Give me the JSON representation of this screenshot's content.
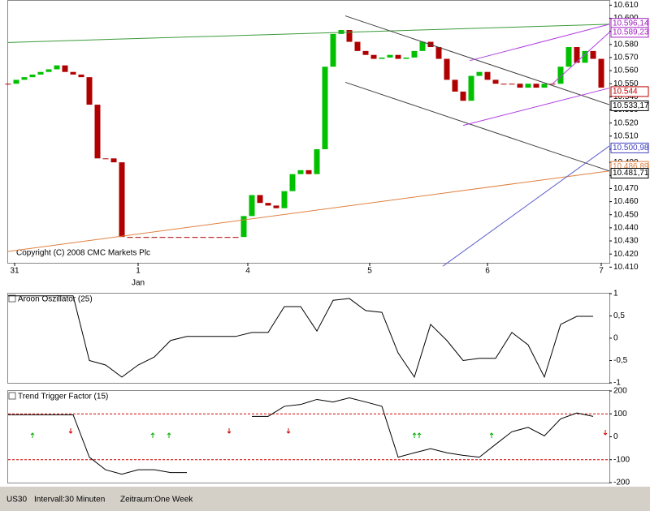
{
  "chart_data": [
    {
      "type": "candlestick",
      "color_up": "#00c000",
      "color_down": "#b00000",
      "annotation": "Copyright (C) 2008 CMC Markets Plc",
      "xlim": [
        0,
        74
      ],
      "xticks": [
        {
          "value": 0.8,
          "label": "31"
        },
        {
          "value": 16,
          "label": "1"
        },
        {
          "value": 29.5,
          "label": "4"
        },
        {
          "value": 44.5,
          "label": "5"
        },
        {
          "value": 59,
          "label": "6"
        },
        {
          "value": 73,
          "label": "7"
        }
      ],
      "month_label": {
        "value": 16,
        "label": "Jan"
      },
      "ylim": [
        10.4133,
        10.6133
      ],
      "yticks": [
        {
          "value": 10.61,
          "label": "10.610"
        },
        {
          "value": 10.6,
          "label": "10.600"
        },
        {
          "value": 10.59,
          "label": "10.590"
        },
        {
          "value": 10.58,
          "label": "10.580"
        },
        {
          "value": 10.57,
          "label": "10.570"
        },
        {
          "value": 10.56,
          "label": "10.560"
        },
        {
          "value": 10.55,
          "label": "10.550"
        },
        {
          "value": 10.54,
          "label": "10.540"
        },
        {
          "value": 10.53,
          "label": "10.530"
        },
        {
          "value": 10.52,
          "label": "10.520"
        },
        {
          "value": 10.51,
          "label": "10.510"
        },
        {
          "value": 10.5,
          "label": "10.500"
        },
        {
          "value": 10.49,
          "label": "10.490"
        },
        {
          "value": 10.48,
          "label": "10.480"
        },
        {
          "value": 10.47,
          "label": "10.470"
        },
        {
          "value": 10.46,
          "label": "10.460"
        },
        {
          "value": 10.45,
          "label": "10.450"
        },
        {
          "value": 10.44,
          "label": "10.440"
        },
        {
          "value": 10.43,
          "label": "10.430"
        },
        {
          "value": 10.42,
          "label": "10.420"
        },
        {
          "value": 10.41,
          "label": "10.410"
        }
      ],
      "values": [
        10.55,
        10.553,
        10.555,
        10.557,
        10.559,
        10.561,
        10.564,
        10.559,
        10.557,
        10.555,
        10.534,
        10.493,
        10.493,
        10.49,
        10.433,
        10.433,
        10.433,
        10.433,
        10.433,
        10.433,
        10.433,
        10.433,
        10.433,
        10.433,
        10.433,
        10.433,
        10.433,
        10.433,
        10.433,
        10.449,
        10.465,
        10.459,
        10.457,
        10.455,
        10.468,
        10.481,
        10.484,
        10.481,
        10.5,
        10.563,
        10.588,
        10.591,
        10.582,
        10.575,
        10.572,
        10.569,
        10.57,
        10.572,
        10.569,
        10.57,
        10.575,
        10.582,
        10.578,
        10.569,
        10.553,
        10.544,
        10.537,
        10.556,
        10.559,
        10.553,
        10.55,
        10.55,
        10.55,
        10.547,
        10.55,
        10.547,
        10.55,
        10.55,
        10.563,
        10.578,
        10.566,
        10.575,
        10.569,
        10.547
      ],
      "lines": [
        {
          "color": "#3a9a3a",
          "x": [
            0,
            74
          ],
          "y": [
            10.5815,
            10.5954
          ]
        },
        {
          "color": "#e08040",
          "x": [
            0,
            74
          ],
          "y": [
            10.422,
            10.4834
          ]
        },
        {
          "color": "#404040",
          "x": [
            41.5,
            74
          ],
          "y": [
            10.6018,
            10.534
          ]
        },
        {
          "color": "#404040",
          "x": [
            41.5,
            74
          ],
          "y": [
            10.5511,
            10.4834
          ]
        },
        {
          "color": "#b040e0",
          "x": [
            56.8,
            74
          ],
          "y": [
            10.5676,
            10.5954
          ]
        },
        {
          "color": "#b040e0",
          "x": [
            56,
            74
          ],
          "y": [
            10.5182,
            10.5467
          ]
        },
        {
          "color": "#6060d0",
          "x": [
            53.5,
            74
          ],
          "y": [
            10.4107,
            10.5025
          ]
        },
        {
          "color": "#b040e0",
          "x": [
            67,
            74
          ],
          "y": [
            10.5499,
            10.5892
          ]
        }
      ],
      "price_labels": [
        {
          "value": 10.59614,
          "label": "10.596,14",
          "color": "#a020c0"
        },
        {
          "value": 10.58923,
          "label": "10.589,23",
          "color": "#a020c0"
        },
        {
          "value": 10.544,
          "label": "10.544",
          "color": "#c00000"
        },
        {
          "value": 10.53317,
          "label": "10.533,17",
          "color": "#000000"
        },
        {
          "value": 10.50098,
          "label": "10.500,98",
          "color": "#4040c0"
        },
        {
          "value": 10.48689,
          "label": "10.486,89",
          "color": "#e08040"
        },
        {
          "value": 10.48171,
          "label": "10.481,71",
          "color": "#000000"
        }
      ]
    },
    {
      "type": "line",
      "title": "Aroon Oszillator (25)",
      "color": "#000000",
      "xlim": [
        0,
        37
      ],
      "ylim": [
        -1,
        1
      ],
      "yticks": [
        1,
        {
          "value": 0.5,
          "label": "0,5"
        },
        0,
        {
          "value": -0.5,
          "label": "-0,5"
        },
        -1
      ],
      "values": [
        0.95,
        0.95,
        0.95,
        0.95,
        0.95,
        -0.5,
        -0.6,
        -0.87,
        -0.6,
        -0.42,
        -0.05,
        0.04,
        0.04,
        0.04,
        0.04,
        0.13,
        0.13,
        0.71,
        0.71,
        0.16,
        0.85,
        0.89,
        0.62,
        0.58,
        -0.33,
        -0.87,
        0.31,
        -0.05,
        -0.5,
        -0.45,
        -0.45,
        0.13,
        -0.15,
        -0.87,
        0.31,
        0.49,
        0.49
      ]
    },
    {
      "type": "line",
      "title": "Trend Trigger Factor (15)",
      "color": "#000000",
      "xlim": [
        0,
        37
      ],
      "ylim": [
        -200,
        200
      ],
      "yticks": [
        200,
        100,
        0,
        -100,
        -200
      ],
      "levels": [
        100,
        -100
      ],
      "level_color": "#d00000",
      "values": [
        96,
        96,
        96,
        96,
        96,
        -89,
        -144,
        -163,
        -144,
        -144,
        -156,
        -156,
        null,
        null,
        null,
        89,
        89,
        133,
        141,
        163,
        152,
        170,
        152,
        133,
        -89,
        -70,
        -52,
        -70,
        -81,
        -89,
        -33,
        22,
        41,
        4,
        78,
        104,
        89
      ]
    }
  ],
  "footer": [
    "US30",
    "Intervall:30 Minuten",
    "Zeitraum:One Week"
  ]
}
